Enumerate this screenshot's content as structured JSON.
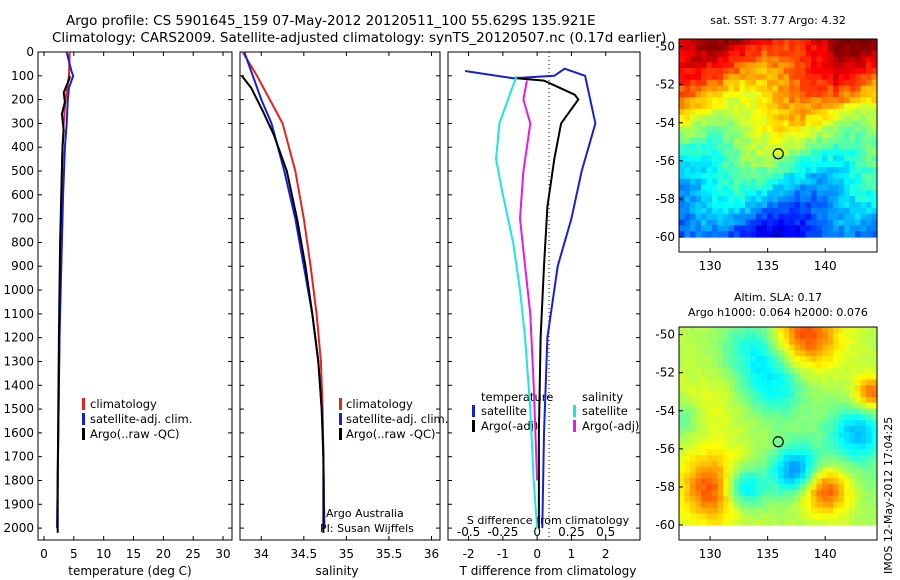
{
  "header": {
    "line1": "Argo profile: CS 5901645_159 07-May-2012 20120511_100 55.629S 135.921E",
    "line2": "Climatology: CARS2009. Satellite-adjusted climatology: synTS_20120507.nc (0.17d earlier)"
  },
  "colors": {
    "climatology": "#e8231a",
    "satellite": "#1520d6",
    "argo": "#000000",
    "satellite_salinity": "#19e6e6",
    "argo_salinity": "#e619e6"
  },
  "credits": {
    "line1": "Argo Australia",
    "line2": "PI: Susan Wijffels"
  },
  "stamp": "IMOS 12-May-2012 17:04:25",
  "chart_data": [
    {
      "type": "line",
      "xlabel": "temperature (deg C)",
      "ylim": [
        2050,
        0
      ],
      "xlim": [
        -1,
        31.5
      ],
      "yticks": [
        "0",
        "100",
        "200",
        "300",
        "400",
        "500",
        "600",
        "700",
        "800",
        "900",
        "1000",
        "1100",
        "1200",
        "1300",
        "1400",
        "1500",
        "1600",
        "1700",
        "1800",
        "1900",
        "2000"
      ],
      "xticks": [
        "0",
        "5",
        "10",
        "15",
        "20",
        "25",
        "30"
      ],
      "legend": [
        "climatology",
        "satellite-adj. clim.",
        "Argo(..raw -QC)"
      ],
      "series": [
        {
          "name": "climatology",
          "x": [
            4.3,
            4.2,
            3.9,
            3.6,
            3.3,
            3.1,
            3.0,
            2.9,
            2.8,
            2.7,
            2.6,
            2.5,
            2.4,
            2.3,
            2.2
          ],
          "y": [
            0,
            100,
            150,
            200,
            300,
            400,
            500,
            600,
            800,
            1000,
            1200,
            1400,
            1600,
            1800,
            2000
          ]
        },
        {
          "name": "satellite-adj. clim.",
          "x": [
            3.8,
            4.6,
            4.9,
            4.2,
            4.0,
            3.8,
            3.5,
            3.2,
            3.0,
            2.8,
            2.6,
            2.5,
            2.4,
            2.2
          ],
          "y": [
            0,
            80,
            100,
            150,
            200,
            300,
            400,
            600,
            800,
            1000,
            1200,
            1400,
            1600,
            2000
          ]
        },
        {
          "name": "Argo(..raw -QC)",
          "x": [
            4.3,
            4.3,
            3.3,
            3.5,
            3.0,
            3.3,
            3.1,
            2.9,
            2.7,
            2.6,
            2.5,
            2.4,
            2.3,
            2.3
          ],
          "y": [
            100,
            110,
            170,
            210,
            260,
            330,
            400,
            600,
            800,
            1000,
            1200,
            1500,
            1800,
            2020
          ]
        }
      ]
    },
    {
      "type": "line",
      "xlabel": "salinity",
      "ylim": [
        2050,
        0
      ],
      "xlim": [
        33.75,
        36.1
      ],
      "xticks": [
        "34",
        "34.5",
        "35",
        "35.5",
        "36"
      ],
      "legend": [
        "climatology",
        "satellite-adj. clim.",
        "Argo(..raw -QC)"
      ],
      "series": [
        {
          "name": "climatology",
          "x": [
            33.78,
            33.95,
            34.1,
            34.25,
            34.4,
            34.5,
            34.58,
            34.65,
            34.7,
            34.72,
            34.73,
            34.74
          ],
          "y": [
            0,
            100,
            200,
            300,
            500,
            700,
            900,
            1100,
            1300,
            1500,
            1700,
            2000
          ]
        },
        {
          "name": "satellite-adj. clim.",
          "x": [
            33.8,
            33.9,
            34.0,
            34.12,
            34.27,
            34.4,
            34.5,
            34.6,
            34.67,
            34.71,
            34.73,
            34.74
          ],
          "y": [
            0,
            100,
            200,
            300,
            500,
            700,
            900,
            1100,
            1300,
            1500,
            1700,
            2000
          ]
        },
        {
          "name": "Argo(..raw -QC)",
          "x": [
            33.77,
            33.88,
            34.02,
            34.15,
            34.3,
            34.42,
            34.52,
            34.6,
            34.67,
            34.71,
            34.73,
            34.73
          ],
          "y": [
            100,
            150,
            250,
            350,
            500,
            700,
            900,
            1100,
            1300,
            1500,
            1700,
            2020
          ]
        }
      ]
    },
    {
      "type": "line",
      "xlabel": "T difference from climatology",
      "xlabel_top": "S difference from climatology",
      "ylim": [
        2050,
        0
      ],
      "xlim": [
        -2.6,
        3.0
      ],
      "xticks": [
        "-2",
        "-1",
        "0",
        "1",
        "2"
      ],
      "xticks_top": [
        "-0.5",
        "-0.25",
        "0",
        "0.25",
        "0.5"
      ],
      "legend_left_title": "temperature",
      "legend_right_title": "salinity",
      "legend_left": [
        "satellite",
        "Argo(-adj)"
      ],
      "legend_right": [
        "satellite",
        "Argo(-adj)"
      ],
      "series": [
        {
          "name": "T satellite",
          "x": [
            -2.1,
            -0.7,
            0.5,
            0.8,
            1.4,
            1.7,
            1.3,
            1.0,
            0.6,
            0.3,
            0.2,
            0.15
          ],
          "y": [
            80,
            110,
            100,
            70,
            100,
            300,
            500,
            700,
            900,
            1200,
            1600,
            2000
          ]
        },
        {
          "name": "T Argo(-adj)",
          "x": [
            -0.6,
            0.2,
            0.5,
            1.1,
            1.2,
            0.7,
            0.5,
            0.3,
            0.2,
            0.1,
            0.05,
            0.05
          ],
          "y": [
            110,
            120,
            140,
            180,
            200,
            300,
            450,
            650,
            900,
            1200,
            1600,
            2000
          ]
        },
        {
          "name": "S satellite",
          "x": [
            -0.6,
            -0.8,
            -1.1,
            -1.2,
            -1.0,
            -0.7,
            -0.5,
            -0.35,
            -0.2,
            -0.1,
            0.0
          ],
          "y": [
            100,
            180,
            300,
            450,
            600,
            800,
            1000,
            1200,
            1500,
            1800,
            2000
          ]
        },
        {
          "name": "S Argo(-adj)",
          "x": [
            -0.3,
            -0.4,
            -0.2,
            -0.3,
            -0.4,
            -0.5,
            -0.35,
            -0.2,
            -0.1,
            0.0
          ],
          "y": [
            120,
            200,
            300,
            400,
            500,
            700,
            900,
            1100,
            1400,
            1800
          ]
        }
      ]
    },
    {
      "type": "heatmap",
      "title": "sat. SST: 3.77  Argo: 4.32",
      "xticks": [
        "130",
        "135",
        "140"
      ],
      "yticks": [
        "-50",
        "-52",
        "-54",
        "-56",
        "-58",
        "-60"
      ],
      "marker": {
        "lon": 135.921,
        "lat": -55.629
      }
    },
    {
      "type": "heatmap",
      "title_line1": "Altim. SLA: 0.17",
      "title_line2": "Argo h1000: 0.064  h2000: 0.076",
      "xticks": [
        "130",
        "135",
        "140"
      ],
      "yticks": [
        "-50",
        "-52",
        "-54",
        "-56",
        "-58",
        "-60"
      ],
      "marker": {
        "lon": 135.921,
        "lat": -55.629
      }
    }
  ]
}
